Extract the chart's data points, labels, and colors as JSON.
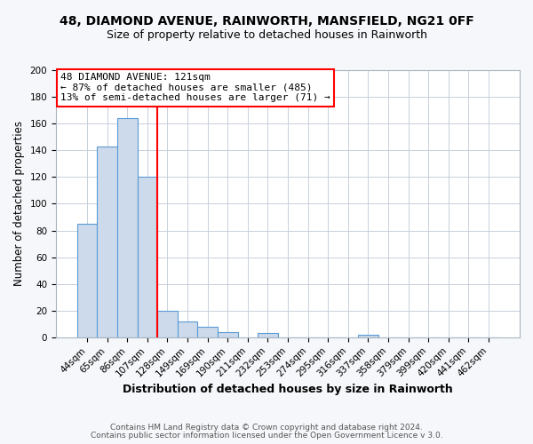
{
  "title": "48, DIAMOND AVENUE, RAINWORTH, MANSFIELD, NG21 0FF",
  "subtitle": "Size of property relative to detached houses in Rainworth",
  "xlabel": "Distribution of detached houses by size in Rainworth",
  "ylabel": "Number of detached properties",
  "bar_labels": [
    "44sqm",
    "65sqm",
    "86sqm",
    "107sqm",
    "128sqm",
    "149sqm",
    "169sqm",
    "190sqm",
    "211sqm",
    "232sqm",
    "253sqm",
    "274sqm",
    "295sqm",
    "316sqm",
    "337sqm",
    "358sqm",
    "379sqm",
    "399sqm",
    "420sqm",
    "441sqm",
    "462sqm"
  ],
  "bar_heights": [
    85,
    143,
    164,
    120,
    20,
    12,
    8,
    4,
    0,
    3,
    0,
    0,
    0,
    0,
    2,
    0,
    0,
    0,
    0,
    0,
    0
  ],
  "bar_color": "#ccdaeb",
  "bar_edge_color": "#5b9bd5",
  "vline_x_index": 4,
  "vline_color": "red",
  "annotation_title": "48 DIAMOND AVENUE: 121sqm",
  "annotation_line1": "← 87% of detached houses are smaller (485)",
  "annotation_line2": "13% of semi-detached houses are larger (71) →",
  "annotation_box_color": "white",
  "annotation_box_edge_color": "red",
  "ylim": [
    0,
    200
  ],
  "yticks": [
    0,
    20,
    40,
    60,
    80,
    100,
    120,
    140,
    160,
    180,
    200
  ],
  "footer1": "Contains HM Land Registry data © Crown copyright and database right 2024.",
  "footer2": "Contains public sector information licensed under the Open Government Licence v 3.0.",
  "figure_background_color": "#f5f7fa",
  "plot_background_color": "white",
  "grid_color": "#c8d0da",
  "title_fontsize": 10,
  "subtitle_fontsize": 9,
  "ylabel_fontsize": 8.5,
  "xlabel_fontsize": 9,
  "tick_fontsize": 7.5,
  "footer_fontsize": 6.5,
  "annotation_fontsize": 8
}
